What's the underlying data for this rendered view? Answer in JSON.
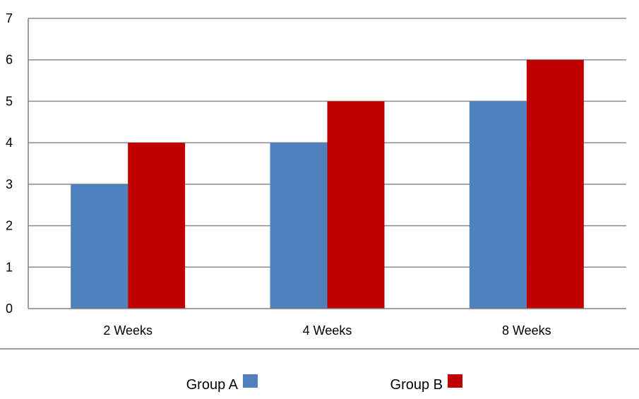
{
  "chart_data": {
    "type": "bar",
    "title": "",
    "xlabel": "",
    "ylabel": "",
    "categories": [
      "2 Weeks",
      "4 Weeks",
      "8 Weeks"
    ],
    "series": [
      {
        "name": "Group A",
        "values": [
          3,
          4,
          5
        ],
        "color": "#4F81BD"
      },
      {
        "name": "Group B",
        "values": [
          4,
          5,
          6
        ],
        "color": "#C00000"
      }
    ],
    "ylim": [
      0,
      7
    ],
    "yticks": [
      0,
      1,
      2,
      3,
      4,
      5,
      6,
      7
    ],
    "grid": true,
    "legend_position": "bottom"
  }
}
